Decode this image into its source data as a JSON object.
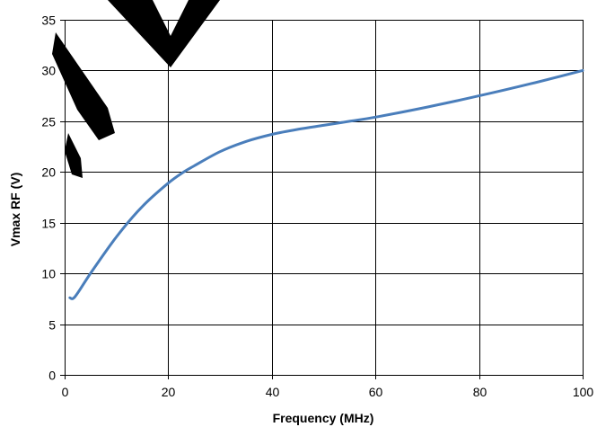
{
  "chart_data": {
    "type": "line",
    "title": "",
    "xlabel": "Frequency (MHz)",
    "ylabel": "Vmax RF (V)",
    "xlim": [
      0,
      100
    ],
    "ylim": [
      0,
      35
    ],
    "x_ticks": [
      0,
      20,
      40,
      60,
      80,
      100
    ],
    "y_ticks": [
      0,
      5,
      10,
      15,
      20,
      25,
      30,
      35
    ],
    "x_tick_labels": [
      "0",
      "20",
      "40",
      "60",
      "80",
      "100"
    ],
    "y_tick_labels": [
      "0",
      "5",
      "10",
      "15",
      "20",
      "25",
      "30",
      "35"
    ],
    "grid": true,
    "legend": "none",
    "series": [
      {
        "color": "#4a7ebb",
        "x": [
          1,
          2,
          5,
          10,
          15,
          20,
          23,
          25,
          30,
          35,
          40,
          45,
          50,
          55,
          60,
          70,
          80,
          90,
          100
        ],
        "y": [
          7.6,
          7.7,
          10.0,
          13.6,
          16.6,
          18.9,
          20.0,
          20.6,
          22.0,
          23.0,
          23.7,
          24.2,
          24.6,
          25.0,
          25.4,
          26.4,
          27.5,
          28.7,
          30.0
        ]
      }
    ]
  },
  "watermark": {
    "text": "NEW D",
    "color": "#000000"
  }
}
